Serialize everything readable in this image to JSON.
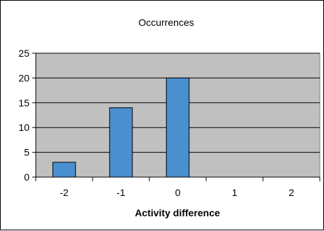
{
  "chart_data": {
    "type": "bar",
    "title": "Occurrences",
    "xlabel": "Activity difference",
    "ylabel": "",
    "categories": [
      "-2",
      "-1",
      "0",
      "1",
      "2"
    ],
    "values": [
      3,
      14,
      20,
      0,
      0
    ],
    "ylim": [
      0,
      25
    ],
    "yticks": [
      0,
      5,
      10,
      15,
      20,
      25
    ],
    "grid": true,
    "legend": "none",
    "colors": {
      "bar": "#4a8fcf",
      "bar_stroke": "#000000",
      "plot_background": "#c0c0c0",
      "gridline": "#000000"
    }
  }
}
